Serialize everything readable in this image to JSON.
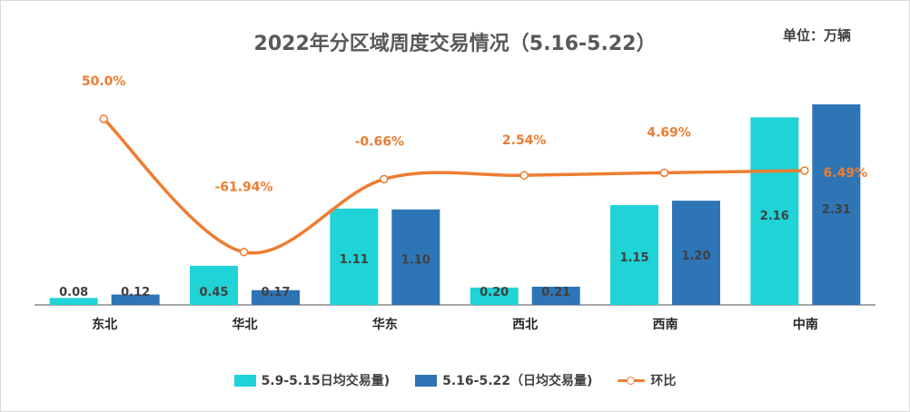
{
  "chart_data": {
    "type": "bar",
    "title": "2022年分区域周度交易情况（5.16-5.22）",
    "unit_label": "单位：万辆",
    "categories": [
      "东北",
      "华北",
      "华东",
      "西北",
      "西南",
      "中南"
    ],
    "series": [
      {
        "name": "5.9-5.15日均交易量)",
        "type": "bar",
        "color": "#1fd3d6",
        "values": [
          0.08,
          0.45,
          1.11,
          0.2,
          1.15,
          2.16
        ],
        "labels": [
          "0.08",
          "0.45",
          "1.11",
          "0.20",
          "1.15",
          "2.16"
        ]
      },
      {
        "name": "5.16-5.22（日均交易量)",
        "type": "bar",
        "color": "#2e75b6",
        "values": [
          0.12,
          0.17,
          1.1,
          0.21,
          1.2,
          2.31
        ],
        "labels": [
          "0.12",
          "0.17",
          "1.10",
          "0.21",
          "1.20",
          "2.31"
        ]
      },
      {
        "name": "环比",
        "type": "line",
        "color": "#ed7d31",
        "values": [
          50.0,
          -61.94,
          -0.66,
          2.54,
          4.69,
          6.49
        ],
        "labels": [
          "50.0%",
          "-61.94%",
          "-0.66%",
          "2.54%",
          "4.69%",
          "6.49%"
        ]
      }
    ],
    "ylim": [
      0,
      2.31
    ],
    "y2lim": [
      -80,
      70
    ],
    "grid": false,
    "legend_position": "bottom"
  }
}
